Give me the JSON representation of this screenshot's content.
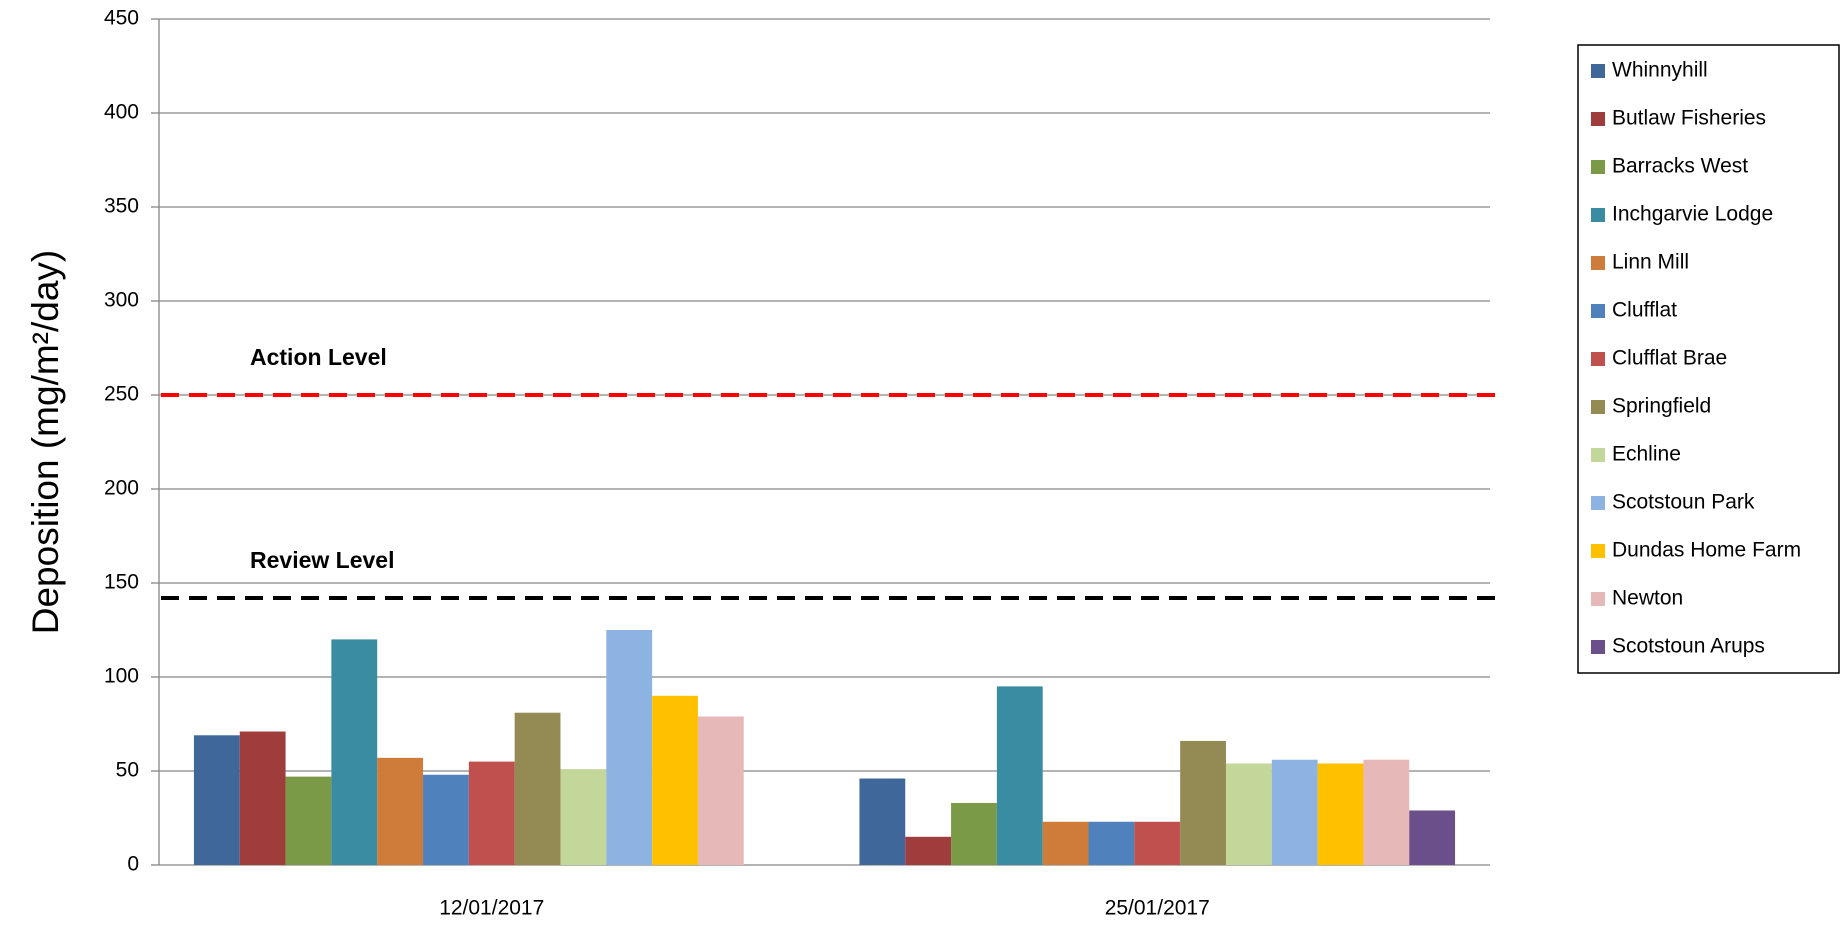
{
  "chart_data": {
    "type": "bar",
    "y_label": "Deposition (mg/m²/day)",
    "categories": [
      "12/01/2017",
      "25/01/2017"
    ],
    "series": [
      {
        "name": "Whinnyhill",
        "color": "#3f679a",
        "values": [
          69,
          46
        ]
      },
      {
        "name": "Butlaw Fisheries",
        "color": "#9e3d3b",
        "values": [
          71,
          15
        ]
      },
      {
        "name": "Barracks West",
        "color": "#7a9a47",
        "values": [
          47,
          33
        ]
      },
      {
        "name": "Inchgarvie Lodge",
        "color": "#3a8ca3",
        "values": [
          120,
          95
        ]
      },
      {
        "name": "Linn Mill",
        "color": "#cf7b3a",
        "values": [
          57,
          23
        ]
      },
      {
        "name": "Clufflat",
        "color": "#4f81bd",
        "values": [
          48,
          23
        ]
      },
      {
        "name": "Clufflat Brae",
        "color": "#c0504d",
        "values": [
          55,
          23
        ]
      },
      {
        "name": "Springfield",
        "color": "#948a54",
        "values": [
          81,
          66
        ]
      },
      {
        "name": "Echline",
        "color": "#c4d79b",
        "values": [
          51,
          54
        ]
      },
      {
        "name": "Scotstoun Park",
        "color": "#8db3e2",
        "values": [
          125,
          56
        ]
      },
      {
        "name": "Dundas Home Farm",
        "color": "#ffc000",
        "values": [
          90,
          54
        ]
      },
      {
        "name": "Newton",
        "color": "#e6b9b8",
        "values": [
          79,
          56
        ]
      },
      {
        "name": "Scotstoun Arups",
        "color": "#6a4f8b",
        "values": [
          null,
          29
        ]
      }
    ],
    "reference_lines": [
      {
        "label": "Action Level",
        "value": 250,
        "color": "#ff0000"
      },
      {
        "label": "Review Level",
        "value": 142,
        "color": "#000000"
      }
    ],
    "ylim": [
      0,
      450
    ],
    "yticks": [
      0,
      50,
      100,
      150,
      200,
      250,
      300,
      350,
      400,
      450
    ],
    "grid": true,
    "legend": "right"
  }
}
